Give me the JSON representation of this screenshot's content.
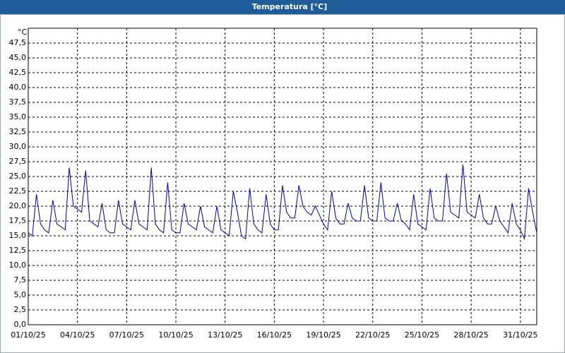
{
  "chart_data": {
    "type": "line",
    "title": "Temperatura [°C]",
    "y_unit": "°C",
    "x": [
      0,
      0.25,
      0.5,
      0.75,
      1,
      1.25,
      1.5,
      1.75,
      2,
      2.25,
      2.5,
      2.75,
      3,
      3.25,
      3.5,
      3.75,
      4,
      4.25,
      4.5,
      4.75,
      5,
      5.25,
      5.5,
      5.75,
      6,
      6.25,
      6.5,
      6.75,
      7,
      7.25,
      7.5,
      7.75,
      8,
      8.25,
      8.5,
      8.75,
      9,
      9.25,
      9.5,
      9.75,
      10,
      10.25,
      10.5,
      10.75,
      11,
      11.25,
      11.5,
      11.75,
      12,
      12.25,
      12.5,
      12.75,
      13,
      13.25,
      13.5,
      13.75,
      14,
      14.25,
      14.5,
      14.75,
      15,
      15.25,
      15.5,
      15.75,
      16,
      16.25,
      16.5,
      16.75,
      17,
      17.25,
      17.5,
      17.75,
      18,
      18.25,
      18.5,
      18.75,
      19,
      19.25,
      19.5,
      19.75,
      20,
      20.25,
      20.5,
      20.75,
      21,
      21.25,
      21.5,
      21.75,
      22,
      22.25,
      22.5,
      22.75,
      23,
      23.25,
      23.5,
      23.75,
      24,
      24.25,
      24.5,
      24.75,
      25,
      25.25,
      25.5,
      25.75,
      26,
      26.25,
      26.5,
      26.75,
      27,
      27.25,
      27.5,
      27.75,
      28,
      28.25,
      28.5,
      28.75,
      29,
      29.25,
      29.5,
      29.75,
      30,
      30.25,
      30.5,
      30.75,
      31
    ],
    "series": [
      {
        "name": "Temperatura",
        "color": "#0000a0",
        "values": [
          15.5,
          15,
          22,
          17,
          16,
          15.5,
          21,
          17,
          16.5,
          16,
          26.5,
          20,
          19.5,
          19,
          26,
          17.5,
          17,
          16.5,
          20.5,
          16,
          15.5,
          15.5,
          21,
          17,
          16.5,
          16,
          21,
          17,
          16.5,
          16,
          26.5,
          17,
          16,
          15.5,
          24,
          16,
          15.5,
          15.5,
          20.5,
          17,
          16.5,
          16,
          20,
          16.5,
          16,
          15.5,
          20,
          16,
          15.5,
          15,
          22.5,
          19,
          15,
          14.5,
          23,
          17,
          16,
          15.5,
          22,
          17,
          16,
          16,
          23.5,
          19,
          18,
          18,
          23.5,
          20,
          19,
          18.5,
          20,
          18.5,
          17,
          16,
          22.5,
          18,
          17,
          17,
          20.5,
          18,
          17.5,
          17.5,
          23.5,
          18,
          17.5,
          17.5,
          24,
          18,
          17.5,
          17.5,
          20.5,
          17.5,
          17,
          16,
          22,
          17,
          16.5,
          16,
          23,
          18,
          17.5,
          17.5,
          25.5,
          19,
          18.5,
          18,
          27,
          19,
          18.5,
          18,
          22,
          18,
          17,
          17,
          20,
          17.5,
          16.5,
          15.5,
          20.5,
          17,
          16,
          14.5,
          23,
          19,
          15.5
        ]
      }
    ],
    "xlim": [
      0,
      31
    ],
    "xticks": [
      {
        "value": 0,
        "label": "01/10/25"
      },
      {
        "value": 3,
        "label": "04/10/25"
      },
      {
        "value": 6,
        "label": "07/10/25"
      },
      {
        "value": 9,
        "label": "10/10/25"
      },
      {
        "value": 12,
        "label": "13/10/25"
      },
      {
        "value": 15,
        "label": "16/10/25"
      },
      {
        "value": 18,
        "label": "19/10/25"
      },
      {
        "value": 21,
        "label": "22/10/25"
      },
      {
        "value": 24,
        "label": "25/10/25"
      },
      {
        "value": 27,
        "label": "28/10/25"
      },
      {
        "value": 30,
        "label": "31/10/25"
      }
    ],
    "ylim": [
      0,
      50
    ],
    "yticks": [
      {
        "value": 0,
        "label": "0,0"
      },
      {
        "value": 2.5,
        "label": "2,5"
      },
      {
        "value": 5,
        "label": "5,0"
      },
      {
        "value": 7.5,
        "label": "7,5"
      },
      {
        "value": 10,
        "label": "10,0"
      },
      {
        "value": 12.5,
        "label": "12,5"
      },
      {
        "value": 15,
        "label": "15,0"
      },
      {
        "value": 17.5,
        "label": "17,5"
      },
      {
        "value": 20,
        "label": "20,0"
      },
      {
        "value": 22.5,
        "label": "22,5"
      },
      {
        "value": 25,
        "label": "25,0"
      },
      {
        "value": 27.5,
        "label": "27,5"
      },
      {
        "value": 30,
        "label": "30,0"
      },
      {
        "value": 32.5,
        "label": "32,5"
      },
      {
        "value": 35,
        "label": "35,0"
      },
      {
        "value": 37.5,
        "label": "37,5"
      },
      {
        "value": 40,
        "label": "40,0"
      },
      {
        "value": 42.5,
        "label": "42,5"
      },
      {
        "value": 45,
        "label": "45,0"
      },
      {
        "value": 47.5,
        "label": "47,5"
      }
    ],
    "grid": true
  }
}
